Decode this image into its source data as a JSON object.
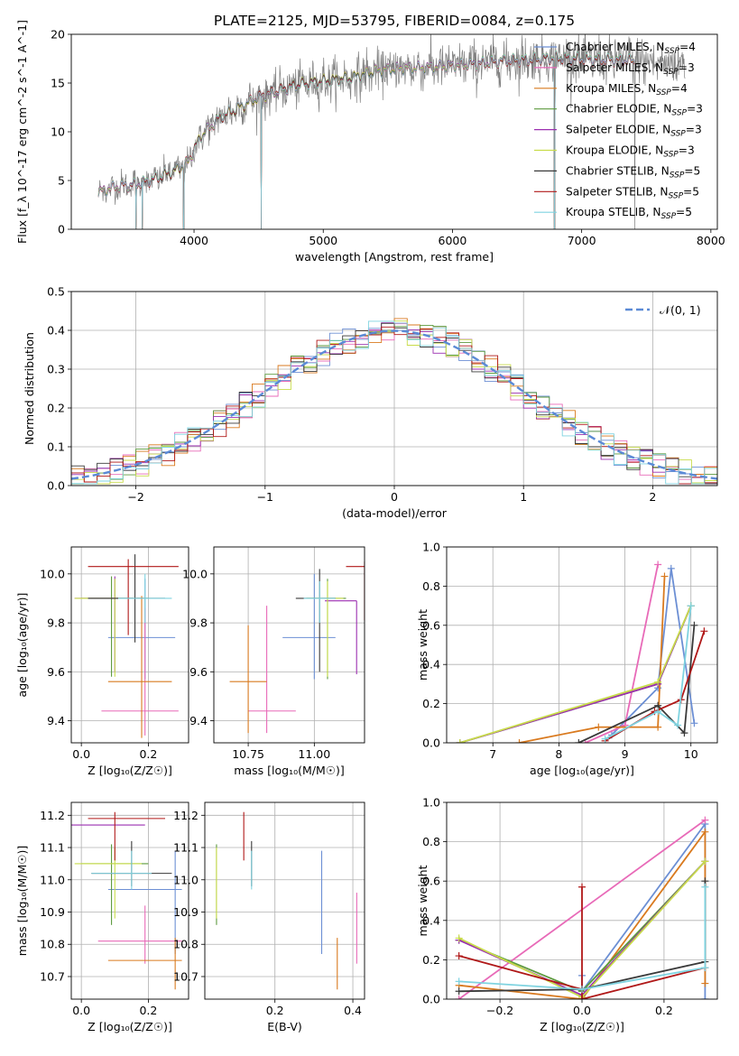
{
  "figure_title": "PLATE=2125, MJD=53795, FIBERID=0084, z=0.175",
  "series": [
    {
      "key": "chabrier_miles",
      "label": "Chabrier MILES, N",
      "sub": "SSP",
      "suffix": "=4",
      "color": "#6c8fd4"
    },
    {
      "key": "salpeter_miles",
      "label": "Salpeter MILES, N",
      "sub": "SSP",
      "suffix": "=3",
      "color": "#e86ab8"
    },
    {
      "key": "kroupa_miles",
      "label": "Kroupa MILES, N",
      "sub": "SSP",
      "suffix": "=4",
      "color": "#d97a1f"
    },
    {
      "key": "chabrier_elodie",
      "label": "Chabrier ELODIE, N",
      "sub": "SSP",
      "suffix": "=3",
      "color": "#5c9a3e"
    },
    {
      "key": "salpeter_elodie",
      "label": "Salpeter ELODIE, N",
      "sub": "SSP",
      "suffix": "=3",
      "color": "#9b2fb0"
    },
    {
      "key": "kroupa_elodie",
      "label": "Kroupa ELODIE, N",
      "sub": "SSP",
      "suffix": "=3",
      "color": "#c8dc4a"
    },
    {
      "key": "chabrier_stelib",
      "label": "Chabrier STELIB, N",
      "sub": "SSP",
      "suffix": "=5",
      "color": "#3a3a3a"
    },
    {
      "key": "salpeter_stelib",
      "label": "Salpeter STELIB, N",
      "sub": "SSP",
      "suffix": "=5",
      "color": "#b01818"
    },
    {
      "key": "kroupa_stelib",
      "label": "Kroupa STELIB, N",
      "sub": "SSP",
      "suffix": "=5",
      "color": "#7fd3e0"
    }
  ],
  "chart_data": [
    {
      "id": "spectrum",
      "type": "line",
      "xlabel": "wavelength [Angstrom, rest frame]",
      "ylabel": "Flux [f_λ 10^-17 erg cm^-2 s^-1 A^-1]",
      "xlim": [
        3050,
        8050
      ],
      "ylim": [
        0,
        20
      ],
      "xticks": [
        4000,
        5000,
        6000,
        7000,
        8000
      ],
      "yticks": [
        0,
        5,
        10,
        15,
        20
      ],
      "grid": false,
      "legend": "right",
      "data_color": "#808080",
      "continuum": {
        "x": [
          3260,
          3400,
          3550,
          3700,
          3850,
          3950,
          4050,
          4200,
          4350,
          4500,
          4650,
          4800,
          5000,
          5200,
          5400,
          5600,
          5800,
          6000,
          6200,
          6400,
          6600,
          6800,
          7000,
          7200,
          7400,
          7600,
          7800
        ],
        "y": [
          3.8,
          4.4,
          4.6,
          5.2,
          6.0,
          6.8,
          9.5,
          11.5,
          12.5,
          13.5,
          14.2,
          14.8,
          15.2,
          15.5,
          16.2,
          16.5,
          16.6,
          16.8,
          17.0,
          17.3,
          17.4,
          17.6,
          17.5,
          17.4,
          17.3,
          17.0,
          17.0
        ]
      },
      "gaps_x": [
        3550,
        3600,
        3920,
        4520,
        6790,
        7410
      ]
    },
    {
      "id": "residuals",
      "type": "histogram",
      "xlabel": "(data-model)/error",
      "ylabel": "Normed distribution",
      "xlim": [
        -2.5,
        2.5
      ],
      "ylim": [
        0,
        0.5
      ],
      "xticks": [
        -2,
        -1,
        0,
        1,
        2
      ],
      "yticks": [
        0.0,
        0.1,
        0.2,
        0.3,
        0.4,
        0.5
      ],
      "grid": true,
      "legend": "top-right",
      "gaussian_label": "𝒩(0, 1)",
      "gaussian_color": "#5b8ad6",
      "bin_width": 0.1
    },
    {
      "id": "age_vs_Z",
      "type": "errorbar",
      "xlabel": "Z [log₁₀(Z/Z☉)]",
      "ylabel": "age  [log₁₀(age/yr)]",
      "xlim": [
        -0.03,
        0.32
      ],
      "ylim": [
        9.31,
        10.11
      ],
      "xticks": [
        0.0,
        0.2
      ],
      "yticks": [
        9.4,
        9.6,
        9.8,
        10.0
      ],
      "grid": true,
      "points": [
        {
          "s": "chabrier_miles",
          "x": 0.19,
          "xerr": [
            0.11,
            0.09
          ],
          "y": 9.74,
          "yerr": [
            0.17,
            0.24
          ]
        },
        {
          "s": "salpeter_miles",
          "x": 0.19,
          "xerr": [
            0.13,
            0.1
          ],
          "y": 9.44,
          "yerr": [
            0.1,
            0.42
          ]
        },
        {
          "s": "kroupa_miles",
          "x": 0.18,
          "xerr": [
            0.1,
            0.09
          ],
          "y": 9.56,
          "yerr": [
            0.23,
            0.35
          ]
        },
        {
          "s": "chabrier_elodie",
          "x": 0.09,
          "xerr": [
            0.09,
            0.11
          ],
          "y": 9.9,
          "yerr": [
            0.32,
            0.09
          ]
        },
        {
          "s": "salpeter_elodie",
          "x": 0.1,
          "xerr": [
            0.12,
            0.09
          ],
          "y": 9.9,
          "yerr": [
            0.3,
            0.09
          ]
        },
        {
          "s": "kroupa_elodie",
          "x": 0.1,
          "xerr": [
            0.12,
            0.09
          ],
          "y": 9.9,
          "yerr": [
            0.32,
            0.08
          ]
        },
        {
          "s": "chabrier_stelib",
          "x": 0.16,
          "xerr": [
            0.14,
            0.09
          ],
          "y": 9.9,
          "yerr": [
            0.18,
            0.18
          ]
        },
        {
          "s": "salpeter_stelib",
          "x": 0.14,
          "xerr": [
            0.12,
            0.15
          ],
          "y": 10.03,
          "yerr": [
            0.28,
            0.03
          ]
        },
        {
          "s": "kroupa_stelib",
          "x": 0.19,
          "xerr": [
            0.08,
            0.08
          ],
          "y": 9.9,
          "yerr": [
            0.1,
            0.1
          ]
        }
      ]
    },
    {
      "id": "age_vs_mass",
      "type": "errorbar",
      "xlabel": "mass [log₁₀(M/M☉)]",
      "ylabel": "",
      "xlim": [
        10.62,
        11.19
      ],
      "ylim": [
        9.31,
        10.11
      ],
      "xticks": [
        10.75,
        11.0
      ],
      "yticks": [
        9.4,
        9.6,
        9.8,
        10.0
      ],
      "grid": true,
      "points": [
        {
          "s": "chabrier_miles",
          "x": 11.0,
          "xerr": [
            0.12,
            0.08
          ],
          "y": 9.74,
          "yerr": [
            0.17,
            0.26
          ]
        },
        {
          "s": "salpeter_miles",
          "x": 10.82,
          "xerr": [
            0.07,
            0.11
          ],
          "y": 9.44,
          "yerr": [
            0.09,
            0.43
          ]
        },
        {
          "s": "kroupa_miles",
          "x": 10.75,
          "xerr": [
            0.07,
            0.07
          ],
          "y": 9.56,
          "yerr": [
            0.21,
            0.23
          ]
        },
        {
          "s": "chabrier_elodie",
          "x": 11.05,
          "xerr": [
            0.08,
            0.07
          ],
          "y": 9.9,
          "yerr": [
            0.33,
            0.08
          ]
        },
        {
          "s": "salpeter_elodie",
          "x": 11.16,
          "xerr": [
            0.12,
            0.0
          ],
          "y": 9.89,
          "yerr": [
            0.3,
            0.0
          ]
        },
        {
          "s": "kroupa_elodie",
          "x": 11.05,
          "xerr": [
            0.08,
            0.06
          ],
          "y": 9.9,
          "yerr": [
            0.32,
            0.07
          ]
        },
        {
          "s": "chabrier_stelib",
          "x": 11.02,
          "xerr": [
            0.09,
            0.06
          ],
          "y": 9.9,
          "yerr": [
            0.3,
            0.12
          ]
        },
        {
          "s": "salpeter_stelib",
          "x": 11.19,
          "xerr": [
            0.07,
            0.0
          ],
          "y": 10.03,
          "yerr": [
            0.22,
            0.02
          ]
        },
        {
          "s": "kroupa_stelib",
          "x": 11.02,
          "xerr": [
            0.06,
            0.06
          ],
          "y": 9.9,
          "yerr": [
            0.1,
            0.07
          ]
        }
      ]
    },
    {
      "id": "massweight_vs_age",
      "type": "line",
      "xlabel": "age  [log₁₀(age/yr)]",
      "ylabel": "mass weight",
      "xlim": [
        6.3,
        10.4
      ],
      "ylim": [
        0,
        1
      ],
      "xticks": [
        7,
        8,
        9,
        10
      ],
      "yticks": [
        0.0,
        0.2,
        0.4,
        0.6,
        0.8,
        1.0
      ],
      "grid": true,
      "series": [
        {
          "s": "chabrier_miles",
          "x": [
            8.8,
            9.5,
            9.7,
            10.05
          ],
          "y": [
            0.04,
            0.28,
            0.89,
            0.1
          ]
        },
        {
          "s": "salpeter_miles",
          "x": [
            8.4,
            9.0,
            9.5
          ],
          "y": [
            0.0,
            0.09,
            0.91
          ]
        },
        {
          "s": "kroupa_miles",
          "x": [
            7.4,
            8.6,
            9.5,
            9.6
          ],
          "y": [
            0.0,
            0.08,
            0.08,
            0.85
          ]
        },
        {
          "s": "chabrier_elodie",
          "x": [
            6.5,
            9.5,
            10.0
          ],
          "y": [
            0.0,
            0.3,
            0.7
          ]
        },
        {
          "s": "salpeter_elodie",
          "x": [
            6.5,
            9.5,
            10.0
          ],
          "y": [
            0.0,
            0.3,
            0.7
          ]
        },
        {
          "s": "kroupa_elodie",
          "x": [
            6.5,
            9.5,
            10.0
          ],
          "y": [
            0.0,
            0.31,
            0.7
          ]
        },
        {
          "s": "chabrier_stelib",
          "x": [
            8.3,
            9.5,
            9.9,
            10.05
          ],
          "y": [
            0.0,
            0.19,
            0.05,
            0.6
          ]
        },
        {
          "s": "salpeter_stelib",
          "x": [
            8.7,
            9.45,
            9.85,
            10.2
          ],
          "y": [
            0.01,
            0.16,
            0.22,
            0.57
          ]
        },
        {
          "s": "kroupa_stelib",
          "x": [
            8.7,
            9.5,
            9.8,
            10.0
          ],
          "y": [
            0.02,
            0.16,
            0.09,
            0.7
          ]
        }
      ]
    },
    {
      "id": "mass_vs_Z",
      "type": "errorbar",
      "xlabel": "Z [log₁₀(Z/Z☉)]",
      "ylabel": "mass [log₁₀(M/M☉)]",
      "xlim": [
        -0.03,
        0.32
      ],
      "ylim": [
        10.63,
        11.24
      ],
      "xticks": [
        0.0,
        0.2
      ],
      "yticks": [
        10.7,
        10.8,
        10.9,
        11.0,
        11.1,
        11.2
      ],
      "grid": true,
      "points": [
        {
          "s": "chabrier_miles",
          "x": 0.28,
          "xerr": [
            0.2,
            0.02
          ],
          "y": 10.97,
          "yerr": [
            0.2,
            0.12
          ]
        },
        {
          "s": "salpeter_miles",
          "x": 0.19,
          "xerr": [
            0.14,
            0.11
          ],
          "y": 10.81,
          "yerr": [
            0.07,
            0.11
          ]
        },
        {
          "s": "kroupa_miles",
          "x": 0.28,
          "xerr": [
            0.2,
            0.02
          ],
          "y": 10.75,
          "yerr": [
            0.09,
            0.07
          ]
        },
        {
          "s": "chabrier_elodie",
          "x": 0.09,
          "xerr": [
            0.09,
            0.11
          ],
          "y": 11.05,
          "yerr": [
            0.19,
            0.06
          ]
        },
        {
          "s": "salpeter_elodie",
          "x": 0.08,
          "xerr": [
            0.11,
            0.11
          ],
          "y": 11.17,
          "yerr": [
            0.0,
            0.0
          ]
        },
        {
          "s": "kroupa_elodie",
          "x": 0.1,
          "xerr": [
            0.12,
            0.08
          ],
          "y": 11.05,
          "yerr": [
            0.17,
            0.05
          ]
        },
        {
          "s": "chabrier_stelib",
          "x": 0.15,
          "xerr": [
            0.12,
            0.12
          ],
          "y": 11.02,
          "yerr": [
            0.04,
            0.1
          ]
        },
        {
          "s": "salpeter_stelib",
          "x": 0.1,
          "xerr": [
            0.08,
            0.15
          ],
          "y": 11.19,
          "yerr": [
            0.13,
            0.02
          ]
        },
        {
          "s": "kroupa_stelib",
          "x": 0.15,
          "xerr": [
            0.12,
            0.06
          ],
          "y": 11.02,
          "yerr": [
            0.05,
            0.07
          ]
        }
      ]
    },
    {
      "id": "mass_vs_ebv",
      "type": "errorbar",
      "xlabel": "E(B-V)",
      "ylabel": "",
      "xlim": [
        0.02,
        0.43
      ],
      "ylim": [
        10.63,
        11.24
      ],
      "xticks": [
        0.2,
        0.4
      ],
      "yticks": [
        10.7,
        10.8,
        10.9,
        11.0,
        11.1,
        11.2
      ],
      "grid": true,
      "points": [
        {
          "s": "chabrier_miles",
          "x": 0.32,
          "xerr": [
            0,
            0
          ],
          "y": 10.97,
          "yerr": [
            0.2,
            0.12
          ]
        },
        {
          "s": "salpeter_miles",
          "x": 0.41,
          "xerr": [
            0,
            0
          ],
          "y": 10.81,
          "yerr": [
            0.07,
            0.15
          ]
        },
        {
          "s": "kroupa_miles",
          "x": 0.36,
          "xerr": [
            0,
            0
          ],
          "y": 10.75,
          "yerr": [
            0.09,
            0.07
          ]
        },
        {
          "s": "chabrier_elodie",
          "x": 0.05,
          "xerr": [
            0,
            0
          ],
          "y": 11.05,
          "yerr": [
            0.19,
            0.06
          ]
        },
        {
          "s": "salpeter_elodie",
          "x": 0.05,
          "xerr": [
            0,
            0
          ],
          "y": 11.17,
          "yerr": [
            0.0,
            0.0
          ]
        },
        {
          "s": "kroupa_elodie",
          "x": 0.05,
          "xerr": [
            0,
            0
          ],
          "y": 11.05,
          "yerr": [
            0.17,
            0.05
          ]
        },
        {
          "s": "chabrier_stelib",
          "x": 0.14,
          "xerr": [
            0,
            0
          ],
          "y": 11.02,
          "yerr": [
            0.04,
            0.1
          ]
        },
        {
          "s": "salpeter_stelib",
          "x": 0.12,
          "xerr": [
            0,
            0
          ],
          "y": 11.19,
          "yerr": [
            0.13,
            0.02
          ]
        },
        {
          "s": "kroupa_stelib",
          "x": 0.14,
          "xerr": [
            0,
            0
          ],
          "y": 11.02,
          "yerr": [
            0.05,
            0.07
          ]
        }
      ]
    },
    {
      "id": "massweight_vs_Z",
      "type": "line",
      "xlabel": "Z [log₁₀(Z/Z☉)]",
      "ylabel": "mass weight",
      "xlim": [
        -0.33,
        0.33
      ],
      "ylim": [
        0,
        1
      ],
      "xticks": [
        -0.2,
        0.0,
        0.2
      ],
      "yticks": [
        0.0,
        0.2,
        0.4,
        0.6,
        0.8,
        1.0
      ],
      "grid": true,
      "series": [
        {
          "s": "chabrier_miles",
          "x": [
            0.0,
            0.0,
            0.3,
            0.3
          ],
          "y": [
            0.12,
            0.04,
            0.89,
            0.0
          ]
        },
        {
          "s": "salpeter_miles",
          "x": [
            -0.3,
            0.3
          ],
          "y": [
            0.0,
            0.91
          ]
        },
        {
          "s": "kroupa_miles",
          "x": [
            -0.3,
            0.0,
            0.3,
            0.3
          ],
          "y": [
            0.07,
            0.0,
            0.85,
            0.08
          ]
        },
        {
          "s": "chabrier_elodie",
          "x": [
            -0.3,
            0.0,
            0.3
          ],
          "y": [
            0.3,
            0.04,
            0.7
          ]
        },
        {
          "s": "salpeter_elodie",
          "x": [
            -0.3,
            0.0,
            0.3
          ],
          "y": [
            0.3,
            0.02,
            0.7
          ]
        },
        {
          "s": "kroupa_elodie",
          "x": [
            -0.3,
            0.0,
            0.3
          ],
          "y": [
            0.31,
            0.01,
            0.7
          ]
        },
        {
          "s": "chabrier_stelib",
          "x": [
            -0.3,
            0.0,
            0.3,
            0.3
          ],
          "y": [
            0.04,
            0.05,
            0.19,
            0.6
          ]
        },
        {
          "s": "salpeter_stelib",
          "x": [
            -0.3,
            0.0,
            0.0,
            0.0,
            0.3
          ],
          "y": [
            0.22,
            0.05,
            0.57,
            0.0,
            0.16
          ]
        },
        {
          "s": "kroupa_stelib",
          "x": [
            -0.3,
            0.0,
            0.3,
            0.3
          ],
          "y": [
            0.09,
            0.05,
            0.16,
            0.57
          ]
        }
      ]
    }
  ]
}
